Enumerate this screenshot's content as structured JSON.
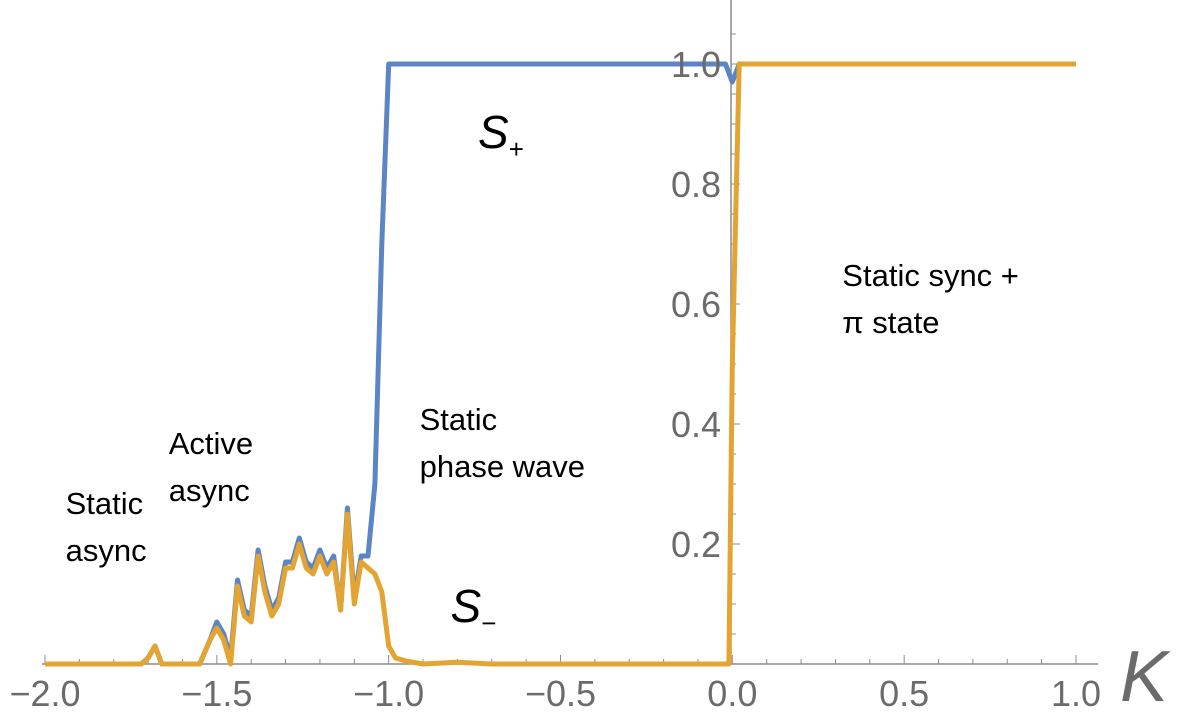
{
  "chart_data": {
    "type": "line",
    "title": "",
    "xlabel": "K",
    "ylabel": "",
    "xlim": [
      -2.0,
      1.0
    ],
    "ylim": [
      0,
      1.1
    ],
    "xticks": [
      {
        "value": -2.0,
        "label": "−2.0"
      },
      {
        "value": -1.5,
        "label": "−1.5"
      },
      {
        "value": -1.0,
        "label": "−1.0"
      },
      {
        "value": -0.5,
        "label": "−0.5"
      },
      {
        "value": 0.0,
        "label": "0.0"
      },
      {
        "value": 0.5,
        "label": "0.5"
      },
      {
        "value": 1.0,
        "label": "1.0"
      }
    ],
    "yticks": [
      {
        "value": 0.2,
        "label": "0.2"
      },
      {
        "value": 0.4,
        "label": "0.4"
      },
      {
        "value": 0.6,
        "label": "0.6"
      },
      {
        "value": 0.8,
        "label": "0.8"
      },
      {
        "value": 1.0,
        "label": "1.0"
      }
    ],
    "series": [
      {
        "name": "S+",
        "color": "#5b85c4",
        "points": [
          [
            -2.0,
            0
          ],
          [
            -1.9,
            0
          ],
          [
            -1.8,
            0
          ],
          [
            -1.72,
            0
          ],
          [
            -1.7,
            0.01
          ],
          [
            -1.68,
            0.03
          ],
          [
            -1.66,
            0
          ],
          [
            -1.6,
            0
          ],
          [
            -1.55,
            0
          ],
          [
            -1.52,
            0.04
          ],
          [
            -1.5,
            0.07
          ],
          [
            -1.48,
            0.05
          ],
          [
            -1.46,
            0.01
          ],
          [
            -1.44,
            0.14
          ],
          [
            -1.42,
            0.09
          ],
          [
            -1.4,
            0.08
          ],
          [
            -1.38,
            0.19
          ],
          [
            -1.36,
            0.13
          ],
          [
            -1.34,
            0.09
          ],
          [
            -1.32,
            0.11
          ],
          [
            -1.3,
            0.17
          ],
          [
            -1.28,
            0.17
          ],
          [
            -1.26,
            0.21
          ],
          [
            -1.24,
            0.17
          ],
          [
            -1.22,
            0.16
          ],
          [
            -1.2,
            0.19
          ],
          [
            -1.18,
            0.16
          ],
          [
            -1.16,
            0.18
          ],
          [
            -1.14,
            0.09
          ],
          [
            -1.12,
            0.26
          ],
          [
            -1.1,
            0.11
          ],
          [
            -1.08,
            0.18
          ],
          [
            -1.06,
            0.18
          ],
          [
            -1.04,
            0.3
          ],
          [
            -1.02,
            0.7
          ],
          [
            -1.0,
            1.0
          ],
          [
            -0.5,
            1.0
          ],
          [
            -0.02,
            1.0
          ],
          [
            0.0,
            0.97
          ],
          [
            0.02,
            1.0
          ],
          [
            1.0,
            1.0
          ]
        ]
      },
      {
        "name": "S−",
        "color": "#e3a431",
        "points": [
          [
            -2.0,
            0
          ],
          [
            -1.9,
            0
          ],
          [
            -1.8,
            0
          ],
          [
            -1.72,
            0
          ],
          [
            -1.7,
            0.01
          ],
          [
            -1.68,
            0.03
          ],
          [
            -1.66,
            0
          ],
          [
            -1.6,
            0
          ],
          [
            -1.55,
            0
          ],
          [
            -1.52,
            0.04
          ],
          [
            -1.5,
            0.06
          ],
          [
            -1.48,
            0.04
          ],
          [
            -1.46,
            0.0
          ],
          [
            -1.44,
            0.13
          ],
          [
            -1.42,
            0.08
          ],
          [
            -1.4,
            0.07
          ],
          [
            -1.38,
            0.18
          ],
          [
            -1.36,
            0.12
          ],
          [
            -1.34,
            0.08
          ],
          [
            -1.32,
            0.1
          ],
          [
            -1.3,
            0.16
          ],
          [
            -1.28,
            0.16
          ],
          [
            -1.26,
            0.2
          ],
          [
            -1.24,
            0.16
          ],
          [
            -1.22,
            0.15
          ],
          [
            -1.2,
            0.18
          ],
          [
            -1.18,
            0.15
          ],
          [
            -1.16,
            0.17
          ],
          [
            -1.14,
            0.09
          ],
          [
            -1.12,
            0.25
          ],
          [
            -1.1,
            0.1
          ],
          [
            -1.08,
            0.17
          ],
          [
            -1.06,
            0.16
          ],
          [
            -1.04,
            0.15
          ],
          [
            -1.02,
            0.12
          ],
          [
            -1.0,
            0.03
          ],
          [
            -0.98,
            0.01
          ],
          [
            -0.95,
            0.005
          ],
          [
            -0.9,
            0.0
          ],
          [
            -0.8,
            0.003
          ],
          [
            -0.7,
            0
          ],
          [
            -0.01,
            0
          ],
          [
            0.0,
            0.5
          ],
          [
            0.02,
            1.0
          ],
          [
            1.0,
            1.0
          ]
        ]
      }
    ],
    "series_labels": [
      {
        "base": "S",
        "sub": "+",
        "x": -0.74,
        "y": 0.86
      },
      {
        "base": "S",
        "sub": "−",
        "x": -0.82,
        "y": 0.07
      }
    ],
    "annotations": [
      {
        "lines": [
          "Static",
          "async"
        ],
        "x": -1.94,
        "y": 0.25
      },
      {
        "lines": [
          "Active",
          "async"
        ],
        "x": -1.64,
        "y": 0.35
      },
      {
        "lines": [
          "Static",
          "phase wave"
        ],
        "x": -0.91,
        "y": 0.39
      },
      {
        "lines": [
          "Static sync +",
          "π state"
        ],
        "x": 0.32,
        "y": 0.63
      }
    ]
  }
}
